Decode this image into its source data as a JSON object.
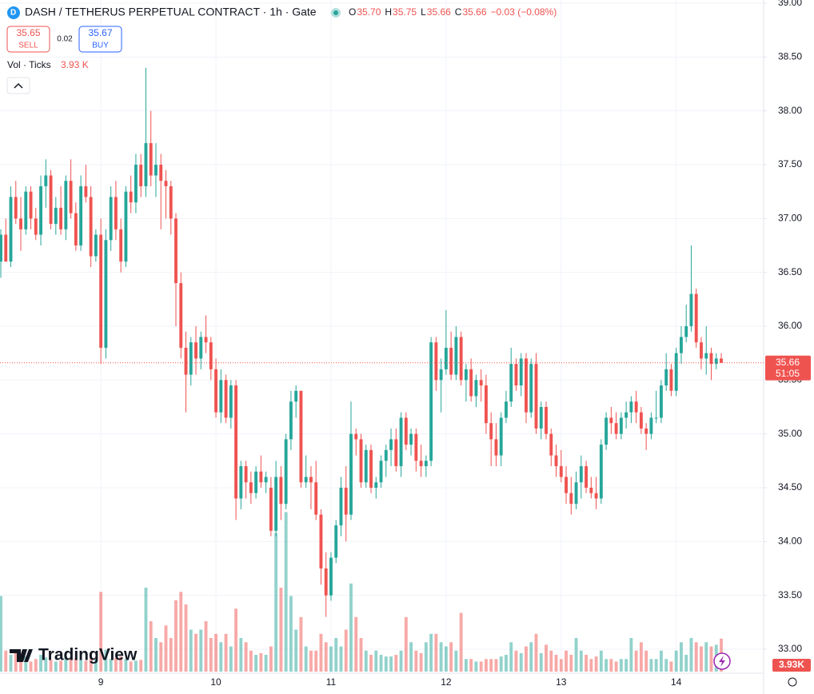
{
  "chart_data": {
    "type": "candlestick",
    "title": "DASH / TETHERUS PERPETUAL CONTRACT · 1h · Gate",
    "legend": [
      {
        "key": "O",
        "value": "35.70"
      },
      {
        "key": "H",
        "value": "35.75"
      },
      {
        "key": "L",
        "value": "35.66"
      },
      {
        "key": "C",
        "value": "35.66"
      }
    ],
    "change": "−0.03 (−0.08%)",
    "sell": {
      "price": "35.65",
      "label": "SELL"
    },
    "spread": "0.02",
    "buy": {
      "price": "35.67",
      "label": "BUY"
    },
    "volume_title": "Vol · Ticks",
    "volume_legend": "3.93 K",
    "volume_axis_label": "3.93K",
    "current_price_label": "35.66",
    "countdown": "51:05",
    "watermark": "TradingView",
    "up_color": "#26a69a",
    "down_color": "#ef5350",
    "grid": true,
    "ylim": [
      33,
      39
    ],
    "yticks": [
      {
        "value": 33,
        "label": "33.00"
      },
      {
        "value": 33.5,
        "label": "33.50"
      },
      {
        "value": 34,
        "label": "34.00"
      },
      {
        "value": 34.5,
        "label": "34.50"
      },
      {
        "value": 35,
        "label": "35.00"
      },
      {
        "value": 35.5,
        "label": "35.50"
      },
      {
        "value": 36,
        "label": "36.00"
      },
      {
        "value": 36.5,
        "label": "36.50"
      },
      {
        "value": 37,
        "label": "37.00"
      },
      {
        "value": 37.5,
        "label": "37.50"
      },
      {
        "value": 38,
        "label": "38.00"
      },
      {
        "value": 38.5,
        "label": "38.50"
      },
      {
        "value": 39,
        "label": "39.00"
      }
    ],
    "current_price": 35.66,
    "volume_lim": [
      0,
      20000
    ],
    "categories": [
      null,
      null,
      null,
      null,
      null,
      null,
      null,
      null,
      null,
      null,
      null,
      null,
      null,
      null,
      null,
      null,
      null,
      null,
      null,
      null,
      "9",
      null,
      null,
      null,
      null,
      null,
      null,
      null,
      null,
      null,
      null,
      null,
      null,
      null,
      null,
      null,
      null,
      null,
      null,
      null,
      null,
      null,
      null,
      "10",
      null,
      null,
      null,
      null,
      null,
      null,
      null,
      null,
      null,
      null,
      null,
      null,
      null,
      null,
      null,
      null,
      null,
      null,
      null,
      null,
      null,
      null,
      "11",
      null,
      null,
      null,
      null,
      null,
      null,
      null,
      null,
      null,
      null,
      null,
      null,
      null,
      null,
      null,
      null,
      null,
      null,
      null,
      null,
      null,
      null,
      "12",
      null,
      null,
      null,
      null,
      null,
      null,
      null,
      null,
      null,
      null,
      null,
      null,
      null,
      null,
      null,
      null,
      null,
      null,
      null,
      null,
      null,
      null,
      "13",
      null,
      null,
      null,
      null,
      null,
      null,
      null,
      null,
      null,
      null,
      null,
      null,
      null,
      null,
      null,
      null,
      null,
      null,
      null,
      null,
      null,
      null,
      "14",
      null,
      null,
      null,
      null,
      null,
      null,
      null,
      null,
      null
    ],
    "ohlc": [
      [
        36.6,
        36.9,
        36.45,
        36.85
      ],
      [
        36.85,
        37.0,
        36.6,
        36.6
      ],
      [
        36.6,
        37.3,
        36.55,
        37.2
      ],
      [
        37.2,
        37.35,
        36.95,
        37.0
      ],
      [
        37.0,
        37.2,
        36.7,
        36.9
      ],
      [
        36.9,
        37.3,
        36.85,
        37.25
      ],
      [
        37.25,
        37.3,
        36.9,
        37.0
      ],
      [
        37.0,
        37.1,
        36.8,
        36.85
      ],
      [
        36.85,
        37.4,
        36.75,
        37.3
      ],
      [
        37.3,
        37.55,
        37.1,
        37.4
      ],
      [
        37.4,
        37.45,
        36.9,
        36.95
      ],
      [
        36.95,
        37.2,
        36.85,
        37.1
      ],
      [
        37.1,
        37.3,
        36.85,
        36.9
      ],
      [
        36.9,
        37.4,
        36.8,
        37.35
      ],
      [
        37.35,
        37.55,
        37.0,
        37.05
      ],
      [
        37.05,
        37.15,
        36.7,
        36.75
      ],
      [
        36.75,
        37.4,
        36.7,
        37.3
      ],
      [
        37.3,
        37.5,
        37.15,
        37.2
      ],
      [
        37.2,
        37.3,
        36.55,
        36.65
      ],
      [
        36.65,
        36.9,
        36.6,
        36.85
      ],
      [
        36.85,
        37.0,
        35.65,
        35.8
      ],
      [
        35.8,
        36.9,
        35.7,
        36.8
      ],
      [
        36.8,
        37.3,
        36.7,
        37.2
      ],
      [
        37.2,
        37.35,
        36.8,
        36.9
      ],
      [
        36.9,
        37.0,
        36.5,
        36.6
      ],
      [
        36.6,
        37.3,
        36.55,
        37.25
      ],
      [
        37.25,
        37.4,
        37.05,
        37.15
      ],
      [
        37.15,
        37.6,
        37.05,
        37.5
      ],
      [
        37.5,
        37.6,
        37.2,
        37.3
      ],
      [
        37.3,
        38.4,
        37.2,
        37.7
      ],
      [
        37.7,
        38.0,
        37.3,
        37.4
      ],
      [
        37.4,
        37.7,
        37.2,
        37.5
      ],
      [
        37.5,
        37.6,
        36.9,
        37.35
      ],
      [
        37.35,
        37.45,
        37.0,
        37.3
      ],
      [
        37.3,
        37.35,
        36.85,
        37.0
      ],
      [
        37.0,
        37.05,
        36.0,
        36.4
      ],
      [
        36.4,
        36.5,
        35.7,
        35.8
      ],
      [
        35.8,
        35.95,
        35.2,
        35.55
      ],
      [
        35.55,
        35.9,
        35.45,
        35.85
      ],
      [
        35.85,
        36.0,
        35.55,
        35.7
      ],
      [
        35.7,
        35.95,
        35.6,
        35.9
      ],
      [
        35.9,
        36.1,
        35.75,
        35.85
      ],
      [
        35.85,
        35.9,
        35.5,
        35.6
      ],
      [
        35.6,
        35.7,
        35.15,
        35.2
      ],
      [
        35.2,
        35.6,
        35.1,
        35.5
      ],
      [
        35.5,
        35.55,
        35.1,
        35.15
      ],
      [
        35.15,
        35.5,
        35.05,
        35.45
      ],
      [
        35.45,
        35.5,
        34.2,
        34.4
      ],
      [
        34.4,
        34.75,
        34.3,
        34.7
      ],
      [
        34.7,
        34.75,
        34.4,
        34.55
      ],
      [
        34.55,
        34.65,
        34.35,
        34.45
      ],
      [
        34.45,
        34.7,
        34.4,
        34.65
      ],
      [
        34.65,
        34.8,
        34.5,
        34.55
      ],
      [
        34.55,
        34.65,
        34.45,
        34.6
      ],
      [
        34.5,
        34.6,
        34.05,
        34.1
      ],
      [
        34.1,
        34.75,
        34.05,
        34.6
      ],
      [
        34.6,
        34.7,
        34.2,
        34.35
      ],
      [
        34.35,
        35.0,
        34.3,
        34.95
      ],
      [
        34.95,
        35.4,
        34.85,
        35.3
      ],
      [
        35.3,
        35.45,
        35.15,
        35.4
      ],
      [
        35.4,
        35.4,
        34.5,
        34.55
      ],
      [
        34.55,
        34.8,
        34.5,
        34.6
      ],
      [
        34.6,
        34.7,
        34.3,
        34.55
      ],
      [
        34.55,
        34.75,
        34.2,
        34.25
      ],
      [
        34.25,
        34.3,
        33.6,
        33.75
      ],
      [
        33.75,
        33.9,
        33.3,
        33.5
      ],
      [
        33.5,
        33.9,
        33.45,
        33.85
      ],
      [
        33.85,
        34.2,
        33.8,
        34.15
      ],
      [
        34.15,
        34.6,
        34.05,
        34.5
      ],
      [
        34.5,
        34.7,
        34.0,
        34.25
      ],
      [
        34.25,
        35.3,
        34.2,
        35.0
      ],
      [
        35.0,
        35.05,
        34.8,
        34.95
      ],
      [
        34.95,
        35.0,
        34.5,
        34.55
      ],
      [
        34.55,
        34.9,
        34.5,
        34.85
      ],
      [
        34.85,
        34.9,
        34.45,
        34.5
      ],
      [
        34.5,
        34.6,
        34.4,
        34.55
      ],
      [
        34.55,
        34.8,
        34.5,
        34.75
      ],
      [
        34.75,
        34.9,
        34.6,
        34.85
      ],
      [
        34.85,
        35.05,
        34.7,
        34.95
      ],
      [
        34.95,
        35.05,
        34.65,
        34.7
      ],
      [
        34.7,
        35.2,
        34.6,
        35.15
      ],
      [
        35.15,
        35.2,
        34.85,
        34.9
      ],
      [
        34.9,
        35.05,
        34.8,
        35.0
      ],
      [
        35.0,
        35.05,
        34.65,
        34.75
      ],
      [
        34.75,
        34.9,
        34.6,
        34.7
      ],
      [
        34.7,
        34.8,
        34.6,
        34.75
      ],
      [
        34.75,
        35.9,
        34.7,
        35.85
      ],
      [
        35.85,
        35.9,
        35.4,
        35.5
      ],
      [
        35.5,
        35.7,
        35.2,
        35.6
      ],
      [
        35.6,
        36.15,
        35.55,
        35.8
      ],
      [
        35.8,
        35.95,
        35.5,
        35.55
      ],
      [
        35.55,
        36.0,
        35.5,
        35.9
      ],
      [
        35.9,
        35.95,
        35.45,
        35.5
      ],
      [
        35.5,
        35.65,
        35.3,
        35.6
      ],
      [
        35.6,
        35.7,
        35.3,
        35.35
      ],
      [
        35.35,
        35.55,
        35.25,
        35.5
      ],
      [
        35.5,
        35.6,
        35.3,
        35.45
      ],
      [
        35.45,
        35.55,
        35.0,
        35.1
      ],
      [
        35.1,
        35.2,
        34.7,
        34.95
      ],
      [
        34.95,
        35.1,
        34.7,
        34.8
      ],
      [
        34.8,
        35.2,
        34.7,
        35.15
      ],
      [
        35.15,
        35.4,
        35.1,
        35.3
      ],
      [
        35.3,
        35.8,
        35.25,
        35.65
      ],
      [
        35.65,
        35.7,
        35.4,
        35.45
      ],
      [
        35.45,
        35.75,
        35.35,
        35.7
      ],
      [
        35.7,
        35.75,
        35.1,
        35.2
      ],
      [
        35.2,
        35.7,
        35.15,
        35.65
      ],
      [
        35.65,
        35.75,
        35.0,
        35.05
      ],
      [
        35.05,
        35.3,
        34.95,
        35.25
      ],
      [
        35.25,
        35.3,
        34.95,
        35.0
      ],
      [
        35.0,
        35.05,
        34.7,
        34.8
      ],
      [
        34.8,
        34.9,
        34.6,
        34.7
      ],
      [
        34.7,
        34.85,
        34.55,
        34.6
      ],
      [
        34.6,
        34.7,
        34.35,
        34.45
      ],
      [
        34.45,
        34.6,
        34.25,
        34.35
      ],
      [
        34.35,
        34.65,
        34.3,
        34.55
      ],
      [
        34.55,
        34.8,
        34.4,
        34.7
      ],
      [
        34.7,
        34.75,
        34.45,
        34.5
      ],
      [
        34.5,
        34.6,
        34.4,
        34.45
      ],
      [
        34.45,
        34.6,
        34.3,
        34.4
      ],
      [
        34.4,
        34.95,
        34.35,
        34.9
      ],
      [
        34.9,
        35.2,
        34.85,
        35.15
      ],
      [
        35.15,
        35.25,
        35.0,
        35.1
      ],
      [
        35.1,
        35.2,
        34.95,
        35.0
      ],
      [
        35.0,
        35.2,
        34.95,
        35.15
      ],
      [
        35.15,
        35.3,
        35.05,
        35.2
      ],
      [
        35.2,
        35.35,
        35.1,
        35.3
      ],
      [
        35.3,
        35.4,
        35.1,
        35.2
      ],
      [
        35.2,
        35.25,
        35.0,
        35.05
      ],
      [
        35.05,
        35.1,
        34.85,
        35.0
      ],
      [
        35.0,
        35.2,
        34.95,
        35.15
      ],
      [
        35.15,
        35.4,
        35.1,
        35.15
      ],
      [
        35.15,
        35.5,
        35.1,
        35.45
      ],
      [
        35.45,
        35.75,
        35.4,
        35.6
      ],
      [
        35.6,
        35.65,
        35.35,
        35.4
      ],
      [
        35.4,
        35.8,
        35.35,
        35.75
      ],
      [
        35.75,
        36.0,
        35.65,
        35.9
      ],
      [
        35.9,
        36.2,
        35.85,
        36.0
      ],
      [
        36.0,
        36.75,
        35.95,
        36.3
      ],
      [
        36.3,
        36.35,
        35.8,
        35.85
      ],
      [
        35.85,
        35.9,
        35.6,
        35.7
      ],
      [
        35.7,
        36.0,
        35.55,
        35.75
      ],
      [
        35.75,
        35.8,
        35.5,
        35.65
      ],
      [
        35.65,
        35.75,
        35.6,
        35.7
      ],
      [
        35.7,
        35.75,
        35.66,
        35.66
      ]
    ],
    "volume": [
      9000,
      2500,
      2000,
      2200,
      1500,
      1800,
      1200,
      1500,
      2000,
      1700,
      1400,
      1200,
      1300,
      1800,
      1500,
      1600,
      1400,
      1300,
      1700,
      1500,
      9500,
      2600,
      1500,
      1600,
      1800,
      1500,
      1200,
      1300,
      1400,
      10000,
      6000,
      4000,
      3500,
      5500,
      4000,
      8500,
      9500,
      8000,
      5000,
      4500,
      5000,
      6000,
      4000,
      4500,
      3500,
      4500,
      3000,
      7500,
      4000,
      3500,
      2500,
      2000,
      2200,
      2000,
      3000,
      16500,
      10000,
      19000,
      9000,
      5000,
      6500,
      3000,
      2500,
      2500,
      4500,
      3500,
      3000,
      4000,
      3000,
      5000,
      10500,
      6500,
      4000,
      2500,
      2000,
      2500,
      2000,
      1800,
      1800,
      2000,
      2500,
      6500,
      3500,
      2500,
      2200,
      3500,
      4500,
      4500,
      3500,
      3000,
      3500,
      2500,
      7000,
      1500,
      1500,
      1200,
      1200,
      1500,
      1500,
      1500,
      1800,
      2000,
      3500,
      2500,
      2200,
      3000,
      3500,
      4500,
      2200,
      3200,
      2500,
      2000,
      1500,
      2500,
      2000,
      4000,
      2500,
      2000,
      1500,
      1800,
      2500,
      1500,
      1500,
      1200,
      1500,
      1500,
      4000,
      2500,
      3500,
      2500,
      1500,
      1500,
      2500,
      1500,
      1200,
      2500,
      3500,
      2000,
      4000,
      3500,
      3000,
      3500,
      3000,
      3200,
      3930
    ]
  }
}
